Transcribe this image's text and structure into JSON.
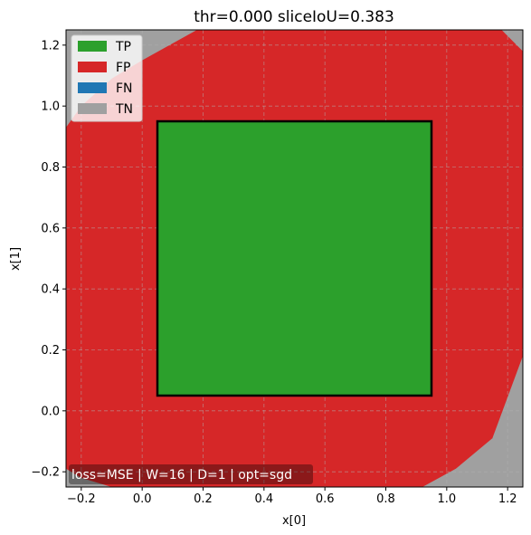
{
  "chart_data": {
    "type": "area",
    "title": "thr=0.000  sliceIoU=0.383",
    "xlabel": "x[0]",
    "ylabel": "x[1]",
    "xlim": [
      -0.25,
      1.25
    ],
    "ylim": [
      -0.25,
      1.25
    ],
    "xticks": [
      -0.2,
      0.0,
      0.2,
      0.4,
      0.6,
      0.8,
      1.0,
      1.2
    ],
    "yticks": [
      -0.2,
      0.0,
      0.2,
      0.4,
      0.6,
      0.8,
      1.0,
      1.2
    ],
    "xtick_labels": [
      "−0.2",
      "0.0",
      "0.2",
      "0.4",
      "0.6",
      "0.8",
      "1.0",
      "1.2"
    ],
    "ytick_labels": [
      "−0.2",
      "0.0",
      "0.2",
      "0.4",
      "0.6",
      "0.8",
      "1.0",
      "1.2"
    ],
    "grid": true,
    "legend_position": "top-left",
    "legend": [
      {
        "label": "TP",
        "color": "#2ca02c"
      },
      {
        "label": "FP",
        "color": "#d62728"
      },
      {
        "label": "FN",
        "color": "#1f77b4"
      },
      {
        "label": "TN",
        "color": "#a0a0a0"
      }
    ],
    "background_region": {
      "class": "TN",
      "color": "#a0a0a0"
    },
    "predicted_region": {
      "class": "FP",
      "color": "#d62728",
      "polygon": [
        [
          -0.25,
          0.93
        ],
        [
          -0.2,
          1.0
        ],
        [
          -0.1,
          1.09
        ],
        [
          0.0,
          1.15
        ],
        [
          0.18,
          1.25
        ],
        [
          1.18,
          1.25
        ],
        [
          1.25,
          1.18
        ],
        [
          1.25,
          0.18
        ],
        [
          1.15,
          -0.09
        ],
        [
          1.03,
          -0.19
        ],
        [
          0.92,
          -0.25
        ],
        [
          -0.1,
          -0.25
        ],
        [
          -0.2,
          -0.22
        ],
        [
          -0.25,
          -0.19
        ]
      ]
    },
    "true_region": {
      "class": "TP",
      "color": "#2ca02c",
      "edge_color": "#000000",
      "x": [
        0.05,
        0.95
      ],
      "y": [
        0.05,
        0.95
      ]
    },
    "annotation": "loss=MSE | W=16 | D=1 | opt=sgd"
  }
}
